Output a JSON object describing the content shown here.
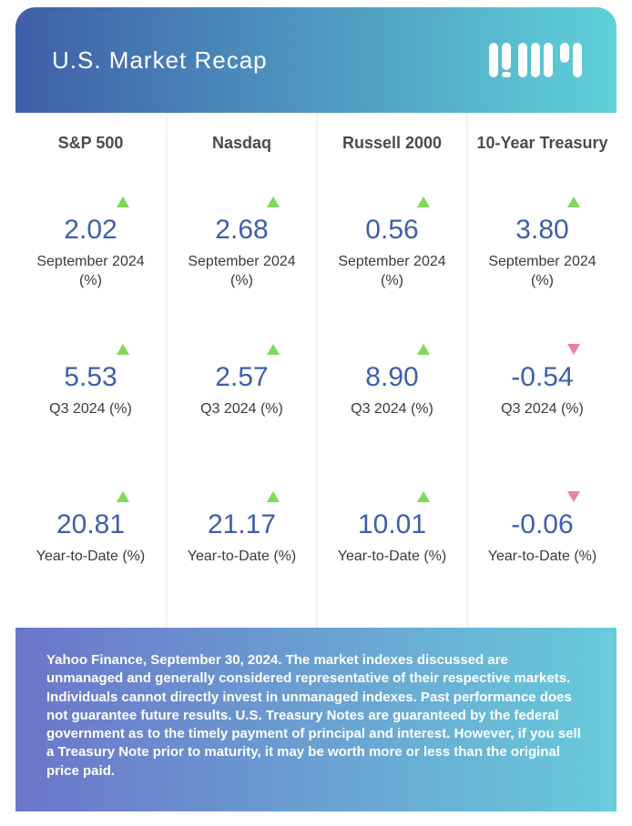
{
  "title": "U.S. Market Recap",
  "colors": {
    "header_gradient_from": "#3f5fa8",
    "header_gradient_to": "#5fd1d8",
    "footer_gradient_from": "#6c75c9",
    "footer_gradient_to": "#68cbda",
    "value_color": "#3f5fa8",
    "up_color": "#7fd858",
    "down_color": "#f07f9a",
    "label_color": "#3a3a3a",
    "divider": "#f3f3f3",
    "card_bg": "#ffffff"
  },
  "periods": [
    "September 2024 (%)",
    "Q3 2024 (%)",
    "Year-to-Date (%)"
  ],
  "columns": [
    {
      "name": "S&P 500",
      "metrics": [
        {
          "value": "2.02",
          "direction": "up"
        },
        {
          "value": "5.53",
          "direction": "up"
        },
        {
          "value": "20.81",
          "direction": "up"
        }
      ]
    },
    {
      "name": "Nasdaq",
      "metrics": [
        {
          "value": "2.68",
          "direction": "up"
        },
        {
          "value": "2.57",
          "direction": "up"
        },
        {
          "value": "21.17",
          "direction": "up"
        }
      ]
    },
    {
      "name": "Russell 2000",
      "metrics": [
        {
          "value": "0.56",
          "direction": "up"
        },
        {
          "value": "8.90",
          "direction": "up"
        },
        {
          "value": "10.01",
          "direction": "up"
        }
      ]
    },
    {
      "name": "10-Year Treasury",
      "metrics": [
        {
          "value": "3.80",
          "direction": "up"
        },
        {
          "value": "-0.54",
          "direction": "down"
        },
        {
          "value": "-0.06",
          "direction": "down"
        }
      ]
    }
  ],
  "footer_text": "Yahoo Finance, September 30, 2024. The market indexes discussed are unmanaged and generally considered representative of their respective markets. Individuals cannot directly invest in unmanaged indexes. Past performance does not guarantee future results. U.S. Treasury Notes are guaranteed by the federal government as to the timely payment of principal and interest. However, if you sell a Treasury Note prior to maturity, it may be worth more or less than the original price paid."
}
